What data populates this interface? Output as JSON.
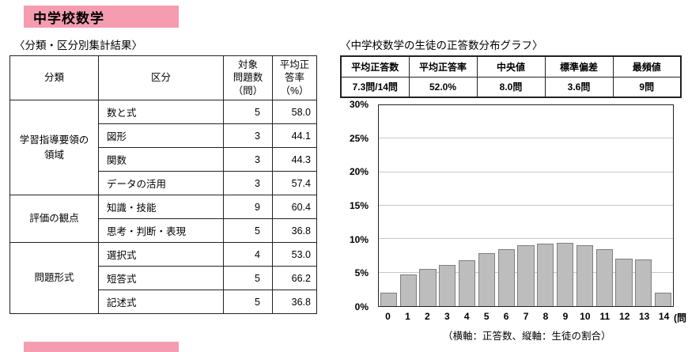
{
  "page": {
    "title": "中学校数学",
    "left_section_title": "〈分類・区分別集計結果〉",
    "right_section_title": "〈中学校数学の生徒の正答数分布グラフ〉",
    "chart_caption": "（横軸：正答数、縦軸：生徒の割合）",
    "accent_pink": "#f59cb1"
  },
  "summary_table": {
    "col_headers": [
      "分類",
      "区分",
      "対象\n問題数\n（問）",
      "平均正\n答率\n（%）"
    ],
    "groups": [
      {
        "category": "学習指導要領の\n領域",
        "rows": [
          {
            "label": "数と式",
            "questions": "5",
            "rate": "58.0"
          },
          {
            "label": "図形",
            "questions": "3",
            "rate": "44.1"
          },
          {
            "label": "関数",
            "questions": "3",
            "rate": "44.3"
          },
          {
            "label": "データの活用",
            "questions": "3",
            "rate": "57.4"
          }
        ]
      },
      {
        "category": "評価の観点",
        "rows": [
          {
            "label": "知識・技能",
            "questions": "9",
            "rate": "60.4"
          },
          {
            "label": "思考・判断・表現",
            "questions": "5",
            "rate": "36.8"
          }
        ]
      },
      {
        "category": "問題形式",
        "rows": [
          {
            "label": "選択式",
            "questions": "4",
            "rate": "53.0"
          },
          {
            "label": "短答式",
            "questions": "5",
            "rate": "66.2"
          },
          {
            "label": "記述式",
            "questions": "5",
            "rate": "36.8"
          }
        ]
      }
    ]
  },
  "stats_table": {
    "columns": [
      {
        "header": "平均正答数",
        "value": "7.3問/14問"
      },
      {
        "header": "平均正答率",
        "value": "52.0%"
      },
      {
        "header": "中央値",
        "value": "8.0問"
      },
      {
        "header": "標準偏差",
        "value": "3.6問"
      },
      {
        "header": "最頻値",
        "value": "9問"
      }
    ]
  },
  "chart_data": {
    "type": "bar",
    "title": "中学校数学の生徒の正答数分布グラフ",
    "categories": [
      "0",
      "1",
      "2",
      "3",
      "4",
      "5",
      "6",
      "7",
      "8",
      "9",
      "10",
      "11",
      "12",
      "13",
      "14"
    ],
    "values": [
      2.0,
      4.7,
      5.5,
      6.2,
      6.8,
      7.9,
      8.5,
      9.1,
      9.3,
      9.4,
      9.1,
      8.5,
      7.1,
      7.0,
      2.0
    ],
    "xlabel": "正答数",
    "ylabel": "生徒の割合",
    "x_unit_label": "(問",
    "ylim": [
      0,
      30
    ],
    "yticks": [
      0,
      5,
      10,
      15,
      20,
      25,
      30
    ],
    "ytick_suffix": "%",
    "grid": true,
    "legend": false,
    "bar_color": "#bdbdbd",
    "bar_border": "#7f7f7f"
  }
}
